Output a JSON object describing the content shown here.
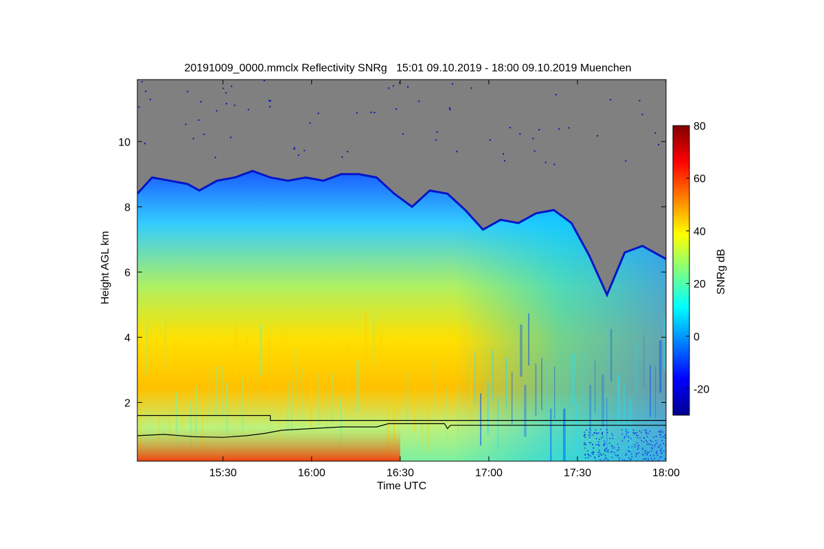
{
  "chart_data": {
    "type": "heatmap",
    "title": "20191009_0000.mmclx Reflectivity SNRg   15:01 09.10.2019 - 18:00 09.10.2019 Muenchen",
    "xlabel": "Time UTC",
    "ylabel": "Height AGL km",
    "xlim": [
      "15:01",
      "18:00"
    ],
    "ylim": [
      0.2,
      11.9
    ],
    "x_ticks": [
      "15:30",
      "16:00",
      "16:30",
      "17:00",
      "17:30",
      "18:00"
    ],
    "y_ticks": [
      "2",
      "4",
      "6",
      "8",
      "10"
    ],
    "missing_color": "#808080",
    "colorbar": {
      "label": "SNRg dB",
      "range": [
        -30,
        80
      ],
      "ticks": [
        "-20",
        "0",
        "20",
        "40",
        "60",
        "80"
      ],
      "colormap": "jet"
    },
    "cloud_top_km": [
      {
        "t": "15:01",
        "h": 8.4
      },
      {
        "t": "15:06",
        "h": 8.9
      },
      {
        "t": "15:12",
        "h": 8.8
      },
      {
        "t": "15:18",
        "h": 8.7
      },
      {
        "t": "15:22",
        "h": 8.5
      },
      {
        "t": "15:28",
        "h": 8.8
      },
      {
        "t": "15:34",
        "h": 8.9
      },
      {
        "t": "15:40",
        "h": 9.1
      },
      {
        "t": "15:46",
        "h": 8.9
      },
      {
        "t": "15:52",
        "h": 8.8
      },
      {
        "t": "15:58",
        "h": 8.9
      },
      {
        "t": "16:04",
        "h": 8.8
      },
      {
        "t": "16:10",
        "h": 9.0
      },
      {
        "t": "16:16",
        "h": 9.0
      },
      {
        "t": "16:22",
        "h": 8.9
      },
      {
        "t": "16:28",
        "h": 8.4
      },
      {
        "t": "16:34",
        "h": 8.0
      },
      {
        "t": "16:40",
        "h": 8.5
      },
      {
        "t": "16:46",
        "h": 8.4
      },
      {
        "t": "16:52",
        "h": 7.9
      },
      {
        "t": "16:58",
        "h": 7.3
      },
      {
        "t": "17:04",
        "h": 7.6
      },
      {
        "t": "17:10",
        "h": 7.5
      },
      {
        "t": "17:16",
        "h": 7.8
      },
      {
        "t": "17:22",
        "h": 7.9
      },
      {
        "t": "17:28",
        "h": 7.5
      },
      {
        "t": "17:34",
        "h": 6.5
      },
      {
        "t": "17:40",
        "h": 5.3
      },
      {
        "t": "17:46",
        "h": 6.6
      },
      {
        "t": "17:52",
        "h": 6.8
      },
      {
        "t": "18:00",
        "h": 6.4
      }
    ],
    "upper_line_km": [
      {
        "t": "15:01",
        "h": 1.6
      },
      {
        "t": "15:46",
        "h": 1.6
      },
      {
        "t": "15:46",
        "h": 1.45
      },
      {
        "t": "18:00",
        "h": 1.45
      }
    ],
    "lower_line_km": [
      {
        "t": "15:01",
        "h": 0.98
      },
      {
        "t": "15:10",
        "h": 1.02
      },
      {
        "t": "15:20",
        "h": 0.95
      },
      {
        "t": "15:30",
        "h": 0.93
      },
      {
        "t": "15:38",
        "h": 0.98
      },
      {
        "t": "15:44",
        "h": 1.05
      },
      {
        "t": "15:50",
        "h": 1.15
      },
      {
        "t": "16:00",
        "h": 1.2
      },
      {
        "t": "16:10",
        "h": 1.25
      },
      {
        "t": "16:22",
        "h": 1.25
      },
      {
        "t": "16:26",
        "h": 1.35
      },
      {
        "t": "16:45",
        "h": 1.35
      },
      {
        "t": "16:46",
        "h": 1.2
      },
      {
        "t": "16:47",
        "h": 1.3
      },
      {
        "t": "18:00",
        "h": 1.3
      }
    ]
  }
}
